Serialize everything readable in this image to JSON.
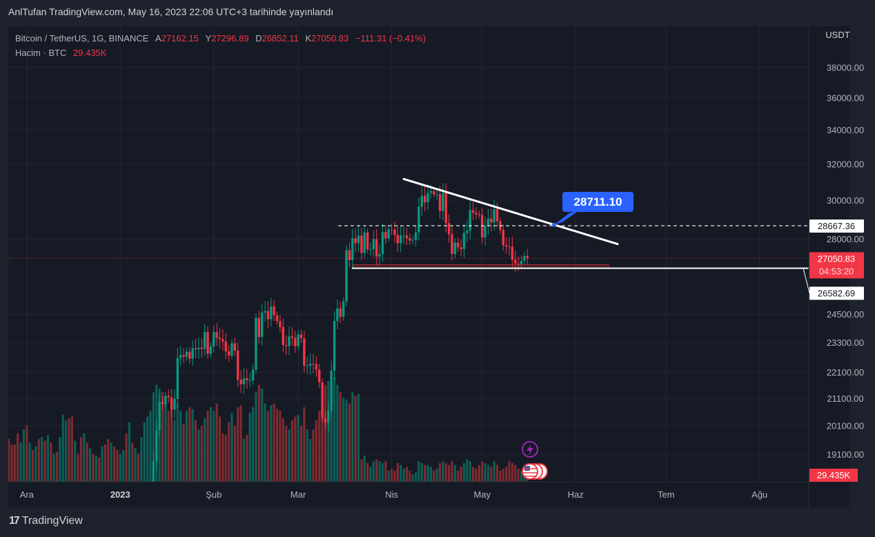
{
  "header": {
    "published": "AnlTufan TradingView.com, May 16, 2023 22:06 UTC+3 tarihinde yayınlandı"
  },
  "legend": {
    "symbol": "Bitcoin / TetherUS, 1G, BINANCE",
    "open_label": "A",
    "open": "27162.15",
    "high_label": "Y",
    "high": "27296.89",
    "low_label": "D",
    "low": "26852.11",
    "close_label": "K",
    "close": "27050.83",
    "change": "−111.31 (−0.41%)",
    "volume_label": "Hacim · BTC",
    "volume": "29.435K"
  },
  "annotation": {
    "callout": "28711.10"
  },
  "brand": {
    "logo": "17",
    "name": "TradingView"
  },
  "colors": {
    "up": "#089981",
    "down": "#f23645",
    "up_vol": "#0c5e56",
    "down_vol": "#7f2b30",
    "callout": "#2962ff",
    "bg": "#161a25"
  },
  "chart_data": {
    "type": "candlestick",
    "title": "Bitcoin / TetherUS, 1G, BINANCE",
    "currency": "USDT",
    "y_scale": "log",
    "start_date": "2022-11-25",
    "first_open": 16580,
    "close": [
      16520,
      16460,
      16440,
      16210,
      16440,
      17160,
      16970,
      17090,
      16890,
      17110,
      16970,
      17090,
      16840,
      17220,
      17130,
      17130,
      17080,
      17200,
      17780,
      17800,
      17360,
      16630,
      16780,
      16740,
      16440,
      16900,
      16820,
      16830,
      16780,
      16840,
      16830,
      16920,
      16700,
      16550,
      16630,
      16600,
      16540,
      16620,
      16680,
      16670,
      16850,
      16830,
      16950,
      16940,
      17120,
      17180,
      17440,
      17940,
      18850,
      19930,
      20950,
      20870,
      21190,
      21130,
      20680,
      21070,
      22670,
      22780,
      22710,
      22910,
      22630,
      23060,
      23010,
      23080,
      23030,
      23740,
      22830,
      23130,
      23730,
      23490,
      23430,
      23330,
      22930,
      22760,
      23260,
      22960,
      21800,
      21630,
      21860,
      21780,
      21780,
      22200,
      24330,
      23520,
      24570,
      24630,
      24280,
      24840,
      24450,
      24190,
      23940,
      23190,
      23150,
      23550,
      23490,
      23140,
      23630,
      23470,
      22350,
      22350,
      22430,
      22410,
      22200,
      21700,
      20360,
      20190,
      20630,
      22160,
      24200,
      24750,
      24380,
      25050,
      27450,
      26970,
      28040,
      27790,
      28170,
      27310,
      28330,
      27490,
      27490,
      27990,
      27140,
      27270,
      28350,
      28030,
      28480,
      28470,
      28200,
      27790,
      28170,
      28170,
      28040,
      27920,
      27950,
      28330,
      29650,
      30230,
      29890,
      30390,
      30490,
      30320,
      30320,
      29430,
      30380,
      28800,
      28240,
      27260,
      27820,
      27590,
      27510,
      28300,
      28420,
      29470,
      29340,
      29250,
      29230,
      28070,
      28670,
      29030,
      28840,
      29530,
      28900,
      28450,
      27690,
      27630,
      27620,
      26990,
      26800,
      26780,
      26930,
      27170,
      27050.83
    ],
    "volume_k": [
      230,
      200,
      200,
      260,
      210,
      280,
      300,
      210,
      170,
      190,
      230,
      240,
      220,
      250,
      210,
      150,
      160,
      240,
      360,
      330,
      340,
      350,
      220,
      150,
      240,
      260,
      210,
      180,
      150,
      140,
      130,
      190,
      200,
      230,
      210,
      190,
      170,
      150,
      170,
      260,
      320,
      210,
      180,
      150,
      240,
      320,
      350,
      380,
      480,
      520,
      500,
      480,
      420,
      380,
      400,
      330,
      420,
      380,
      310,
      380,
      400,
      390,
      330,
      280,
      300,
      340,
      380,
      400,
      380,
      420,
      350,
      260,
      250,
      320,
      370,
      300,
      400,
      410,
      230,
      250,
      370,
      400,
      480,
      520,
      500,
      420,
      380,
      410,
      420,
      390,
      380,
      340,
      300,
      280,
      330,
      350,
      360,
      300,
      400,
      280,
      230,
      280,
      330,
      380,
      480,
      520,
      540,
      500,
      560,
      520,
      480,
      450,
      440,
      420,
      480,
      460,
      470,
      120,
      140,
      100,
      80,
      110,
      120,
      110,
      100,
      110,
      60,
      70,
      60,
      100,
      90,
      70,
      80,
      60,
      40,
      50,
      110,
      100,
      90,
      90,
      80,
      60,
      70,
      100,
      110,
      100,
      90,
      110,
      90,
      60,
      80,
      100,
      120,
      110,
      80,
      70,
      90,
      110,
      100,
      90,
      80,
      110,
      90,
      60,
      70,
      80,
      110,
      100,
      90,
      70,
      60,
      70,
      29.435
    ],
    "y_ticks": [
      "38000.00",
      "36000.00",
      "34000.00",
      "32000.00",
      "30000.00",
      "28000.00",
      "24500.00",
      "23300.00",
      "22100.00",
      "21100.00",
      "20100.00",
      "19100.00"
    ],
    "x_ticks": [
      {
        "label": "Ara",
        "day": 6
      },
      {
        "label": "2023",
        "day": 37,
        "bold": true
      },
      {
        "label": "Şub",
        "day": 68
      },
      {
        "label": "Mar",
        "day": 96
      },
      {
        "label": "Nis",
        "day": 127
      },
      {
        "label": "May",
        "day": 157
      },
      {
        "label": "Haz",
        "day": 188
      },
      {
        "label": "Tem",
        "day": 218
      },
      {
        "label": "Ağu",
        "day": 249
      }
    ],
    "price_labels": [
      {
        "value": "28667.36",
        "style": "white"
      },
      {
        "value": "27050.83",
        "sub": "04:53:20",
        "style": "red"
      },
      {
        "value": "26582.69",
        "style": "white"
      }
    ],
    "volume_label": "29.435K",
    "axis_unit": "USDT",
    "drawings": {
      "trendline_start": 31150,
      "trendline_end": 27750,
      "support": 26582.69,
      "resistance": 28667.36,
      "target": 28711.1
    }
  }
}
